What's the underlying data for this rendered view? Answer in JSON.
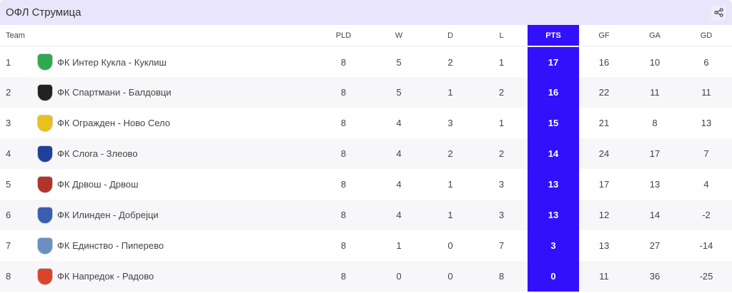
{
  "title": "ОФЛ Струмица",
  "share_icon": "share-icon",
  "columns": [
    "Team",
    "PLD",
    "W",
    "D",
    "L",
    "PTS",
    "GF",
    "GA",
    "GD"
  ],
  "colors": {
    "accent": "#3310fb",
    "header_bg": "#e9e5fb"
  },
  "rows": [
    {
      "pos": "1",
      "team": "ФК Интер Кукла - Куклиш",
      "logo_color": "#2fa84f",
      "pld": "8",
      "w": "5",
      "d": "2",
      "l": "1",
      "pts": "17",
      "gf": "16",
      "ga": "10",
      "gd": "6"
    },
    {
      "pos": "2",
      "team": "ФК Спартмани - Балдовци",
      "logo_color": "#222222",
      "pld": "8",
      "w": "5",
      "d": "1",
      "l": "2",
      "pts": "16",
      "gf": "22",
      "ga": "11",
      "gd": "11"
    },
    {
      "pos": "3",
      "team": "ФК Ограждeн - Ново Село",
      "logo_color": "#e8c21a",
      "pld": "8",
      "w": "4",
      "d": "3",
      "l": "1",
      "pts": "15",
      "gf": "21",
      "ga": "8",
      "gd": "13"
    },
    {
      "pos": "4",
      "team": "ФК Слога - Злеово",
      "logo_color": "#1f3f9a",
      "pld": "8",
      "w": "4",
      "d": "2",
      "l": "2",
      "pts": "14",
      "gf": "24",
      "ga": "17",
      "gd": "7"
    },
    {
      "pos": "5",
      "team": "ФК Дрвош - Дрвош",
      "logo_color": "#b3322a",
      "pld": "8",
      "w": "4",
      "d": "1",
      "l": "3",
      "pts": "13",
      "gf": "17",
      "ga": "13",
      "gd": "4"
    },
    {
      "pos": "6",
      "team": "ФК Илинден - Добрејци",
      "logo_color": "#3a5fb0",
      "pld": "8",
      "w": "4",
      "d": "1",
      "l": "3",
      "pts": "13",
      "gf": "12",
      "ga": "14",
      "gd": "-2"
    },
    {
      "pos": "7",
      "team": "ФК Единство - Пиперево",
      "logo_color": "#6a8fc0",
      "pld": "8",
      "w": "1",
      "d": "0",
      "l": "7",
      "pts": "3",
      "gf": "13",
      "ga": "27",
      "gd": "-14"
    },
    {
      "pos": "8",
      "team": "ФК Напредок - Радово",
      "logo_color": "#d9452b",
      "pld": "8",
      "w": "0",
      "d": "0",
      "l": "8",
      "pts": "0",
      "gf": "11",
      "ga": "36",
      "gd": "-25"
    }
  ]
}
